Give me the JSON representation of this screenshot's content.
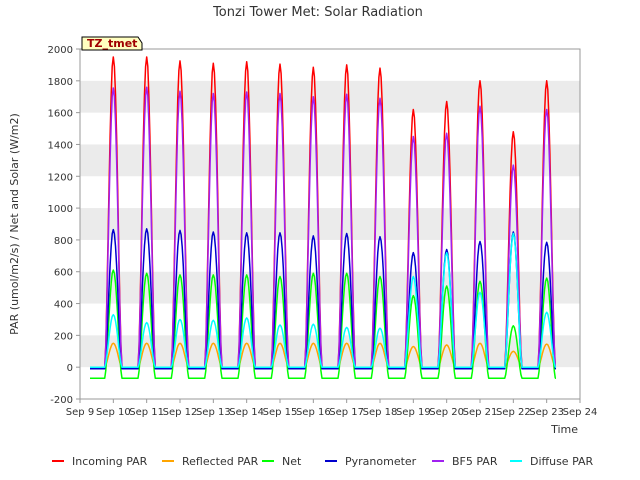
{
  "chart_data": {
    "type": "line",
    "title": "Tonzi Tower Met: Solar Radiation",
    "xlabel": "Time",
    "ylabel": "PAR (umol/m2/s) / Net and Solar (W/m2)",
    "site_label": "TZ_tmet",
    "xlim": [
      9,
      24
    ],
    "ylim": [
      -200,
      2000
    ],
    "x_ticks": [
      {
        "value": 9,
        "label": "Sep 9"
      },
      {
        "value": 10,
        "label": "Sep 10"
      },
      {
        "value": 11,
        "label": "Sep 11"
      },
      {
        "value": 12,
        "label": "Sep 12"
      },
      {
        "value": 13,
        "label": "Sep 13"
      },
      {
        "value": 14,
        "label": "Sep 14"
      },
      {
        "value": 15,
        "label": "Sep 15"
      },
      {
        "value": 16,
        "label": "Sep 16"
      },
      {
        "value": 17,
        "label": "Sep 17"
      },
      {
        "value": 18,
        "label": "Sep 18"
      },
      {
        "value": 19,
        "label": "Sep 19"
      },
      {
        "value": 20,
        "label": "Sep 20"
      },
      {
        "value": 21,
        "label": "Sep 21"
      },
      {
        "value": 22,
        "label": "Sep 22"
      },
      {
        "value": 23,
        "label": "Sep 23"
      },
      {
        "value": 24,
        "label": "Sep 24"
      }
    ],
    "y_ticks": [
      -200,
      0,
      200,
      400,
      600,
      800,
      1000,
      1200,
      1400,
      1600,
      1800,
      2000
    ],
    "grid": "horizontal bands",
    "legend_position": "bottom",
    "daily_peak_day_offset": 0.5,
    "series": [
      {
        "name": "Incoming PAR",
        "color": "#ff0000",
        "night_value": 0,
        "days": [
          10,
          11,
          12,
          13,
          14,
          15,
          16,
          17,
          18,
          19,
          20,
          21,
          22,
          23
        ],
        "peaks": [
          1950,
          1950,
          1925,
          1910,
          1920,
          1905,
          1885,
          1900,
          1880,
          1620,
          1670,
          1800,
          1480,
          1800
        ]
      },
      {
        "name": "Reflected PAR",
        "color": "#ffa500",
        "night_value": 0,
        "days": [
          10,
          11,
          12,
          13,
          14,
          15,
          16,
          17,
          18,
          19,
          20,
          21,
          22,
          23
        ],
        "peaks": [
          150,
          150,
          150,
          150,
          150,
          150,
          150,
          150,
          150,
          130,
          140,
          150,
          100,
          145
        ]
      },
      {
        "name": "Net",
        "color": "#00ff00",
        "night_value": -70,
        "days": [
          10,
          11,
          12,
          13,
          14,
          15,
          16,
          17,
          18,
          19,
          20,
          21,
          22,
          23
        ],
        "peaks": [
          610,
          590,
          580,
          580,
          580,
          570,
          590,
          590,
          570,
          450,
          510,
          540,
          260,
          560
        ]
      },
      {
        "name": "Pyranometer",
        "color": "#0000cd",
        "night_value": -10,
        "days": [
          10,
          11,
          12,
          13,
          14,
          15,
          16,
          17,
          18,
          19,
          20,
          21,
          22,
          23
        ],
        "peaks": [
          865,
          870,
          860,
          850,
          845,
          845,
          825,
          840,
          820,
          720,
          740,
          790,
          850,
          785
        ]
      },
      {
        "name": "BF5 PAR",
        "color": "#a020f0",
        "night_value": 0,
        "days": [
          10,
          11,
          12,
          13,
          14,
          15,
          16,
          17,
          18,
          19,
          20,
          21,
          22,
          23
        ],
        "peaks": [
          1755,
          1760,
          1735,
          1720,
          1730,
          1720,
          1700,
          1715,
          1690,
          1450,
          1470,
          1640,
          1270,
          1620
        ]
      },
      {
        "name": "Diffuse PAR",
        "color": "#00ffff",
        "night_value": 0,
        "days": [
          10,
          11,
          12,
          13,
          14,
          15,
          16,
          17,
          18,
          19,
          20,
          21,
          22,
          23
        ],
        "peaks": [
          330,
          280,
          300,
          295,
          310,
          265,
          270,
          250,
          245,
          570,
          720,
          470,
          840,
          345
        ]
      }
    ]
  }
}
